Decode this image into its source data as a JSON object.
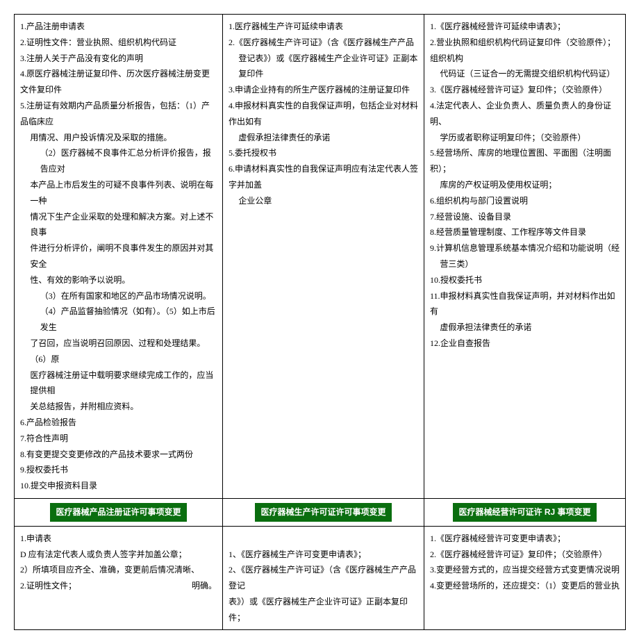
{
  "palette": {
    "header_bg": "#0a6e0f",
    "header_fg": "#ffffff"
  },
  "top": {
    "col1": {
      "l1": "1.产品注册申请表",
      "l2": "2.证明性文件：营业执照、组织机构代码证",
      "l3": "3.注册人关于产品没有变化的声明",
      "l4": "4.原医疗器械注册证复印件、历次医疗器械注册变更文件复印件",
      "l5": "5.注册证有效期内产品质量分析报告，包括：（1）产品临床应",
      "l5b": "用情况、用户投诉情况及采取的措施。",
      "l5c": "（2）医疗器械不良事件汇总分析评价报告，报告应对",
      "l5d": "本产品上市后发生的可疑不良事件列表、说明在每一种",
      "l5e": "情况下生产企业采取的处理和解决方案。对上述不良事",
      "l5f": "件进行分析评价，阐明不良事件发生的原因并对其安全",
      "l5g": "性、有效的影响予以说明。",
      "l5h": "（3）在所有国家和地区的产品市场情况说明。",
      "l5i": "（4）产品监督抽验情况（如有）。（5）如上市后发生",
      "l5j": "了召回，应当说明召回原因、过程和处理结果。（6）原",
      "l5k": "医疗器械注册证中载明要求继续完成工作的，应当提供相",
      "l5l": "关总结报告，并附相应资料。",
      "l6": "6.产品检验报告",
      "l7": "7.符合性声明",
      "l8": "8.有变更提交变更修改的产品技术要求一式两份",
      "l9": "9.授权委托书",
      "l10": "10.提交申报资料目录"
    },
    "col2": {
      "l1": "1.医疗器械生产许可延续申请表",
      "l2": "2.《医疗器械生产许可证》（含《医疗器械生产产品",
      "l2b": "登记表》）或《医疗器械生产企业许可证》正副本复印件",
      "l3": "3.申请企业持有的所生产医疗器械的注册证复印件",
      "l4": "4.申报材料真实性的自我保证声明，包括企业对材料作出如有",
      "l4b": "虚假承担法律责任的承诺",
      "l5": "5.委托授权书",
      "l6": "6.申请材料真实性的自我保证声明应有法定代表人签字并加盖",
      "l6b": "企业公章"
    },
    "col3": {
      "l1": "1.《医疗器械经营许可延续申请表》；",
      "l2": "2.营业执照和组织机构代码证复印件（交验原件）；组织机构",
      "l2b": "代码证（三证合一的无需提交组织机构代码证）",
      "l3": "3.《医疗器械经营许可证》复印件；（交验原件）",
      "l4": "4.法定代表人、企业负责人、质量负责人的身份证明、",
      "l4b": "学历或者职称证明复印件；（交验原件）",
      "l5": "5.经营场所、库房的地理位置图、平面图（注明面积）；",
      "l5b": "库房的产权证明及使用权证明；",
      "l6": "6.组织机构与部门设置说明",
      "l7": "7.经营设施、设备目录",
      "l8": "8.经营质量管理制度、工作程序等文件目录",
      "l9": "9.计算机信息管理系统基本情况介绍和功能说明（经",
      "l9b": "营三类）",
      "l10": "10.授权委托书",
      "l11": "11.申报材料真实性自我保证声明，并对材料作出如有",
      "l11b": "虚假承担法律责任的承诺",
      "l12": "12.企业自查报告"
    }
  },
  "headers": {
    "h1": "医疗器械产品注册证许可事项变更",
    "h2": "医疗器械生产许可证许可事项变更",
    "h3pre": "医疗器械经营许可证许",
    "h3rj": " RJ ",
    "h3post": "事项变更"
  },
  "bottom": {
    "col1": {
      "l1": "1.申请表",
      "l2": "D 应有法定代表人或负责人签字并加盖公章；",
      "l3": "2）所填项目应齐全、准确，变更前后情况清晰、",
      "l4": "2.证明性文件；",
      "l4r": "明确。"
    },
    "col2": {
      "l1": "1、《医疗器械生产许可变更申请表》；",
      "l2": "2、《医疗器械生产许可证》（含《医疗器械生产产品登记",
      "l3": "表》）或《医疗器械生产企业许可证》正副本复印件；"
    },
    "col3": {
      "l1": "1.《医疗器械经营许可变更申请表》；",
      "l2": "2.《医疗器械经营许可证》复印件；（交验原件）",
      "l3": "3.变更经营方式的，应当提交经营方式变更情况说明",
      "l4": "4.变更经营场所的，还应提交：（1）变更后的营业执"
    }
  }
}
